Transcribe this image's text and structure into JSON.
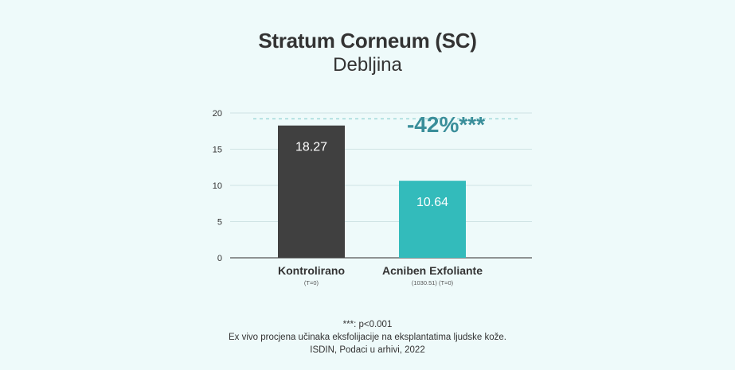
{
  "chart_data": {
    "type": "bar",
    "title": "Stratum Corneum (SC)",
    "subtitle": "Debljina",
    "categories": [
      "Kontrolirano",
      "Acniben Exfoliante"
    ],
    "category_notes": [
      "(T=0)",
      "(1030.51) (T=0)"
    ],
    "values": [
      18.27,
      10.64
    ],
    "value_labels": [
      "18.27",
      "10.64"
    ],
    "bar_colors": [
      "#404040",
      "#33bbbb"
    ],
    "ylim": [
      0,
      20
    ],
    "yticks": [
      0,
      5,
      10,
      15,
      20
    ],
    "grid": true,
    "reference_line_value": 19.2,
    "annotation": "-42%***",
    "annotation_color": "#3a8e9a",
    "xlabel": "",
    "ylabel": ""
  },
  "footnotes": {
    "significance": "***: p<0.001",
    "line1": "Ex vivo procjena učinaka eksfolijacije na eksplantatima ljudske kože.",
    "line2": "ISDIN, Podaci u arhivi, 2022"
  }
}
